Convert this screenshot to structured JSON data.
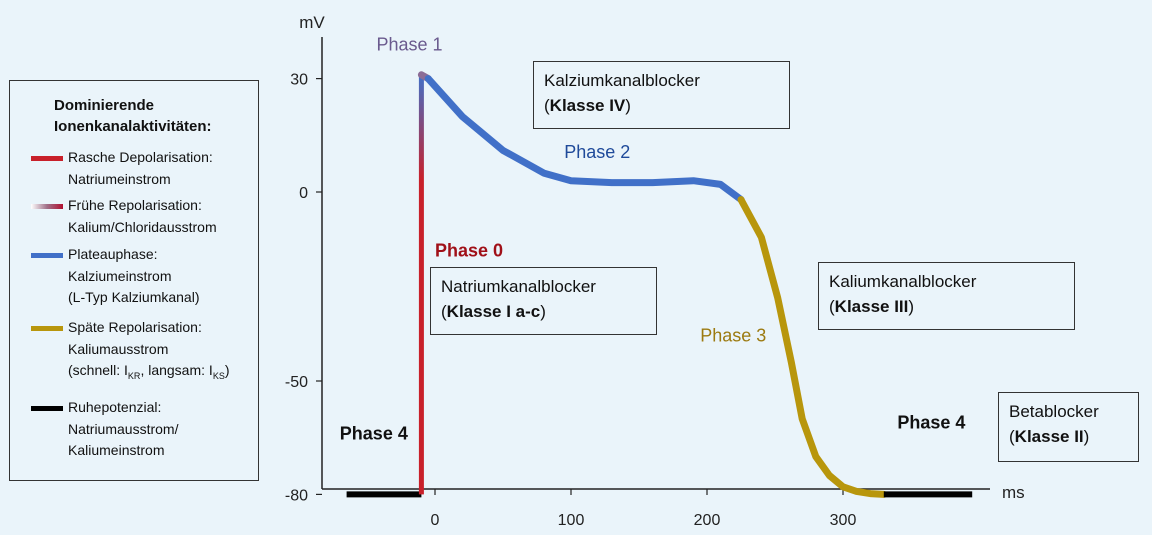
{
  "chart_data": {
    "type": "line",
    "xlabel": "ms",
    "ylabel": "mV",
    "xlim": [
      -70,
      400
    ],
    "ylim": [
      -90,
      38
    ],
    "xticks": [
      0,
      100,
      200,
      300
    ],
    "yticks": [
      30,
      0,
      -50,
      -80
    ],
    "series": [
      {
        "key": "rest_left",
        "color": "#000000",
        "x": [
          -65,
          -10
        ],
        "y": [
          -80,
          -80
        ]
      },
      {
        "key": "depolarization",
        "color": "#c8202a",
        "x": [
          -10,
          -10
        ],
        "y": [
          -80,
          31
        ]
      },
      {
        "key": "early_repolarization",
        "color": "#8c6c96",
        "x": [
          -10,
          -5
        ],
        "y": [
          31,
          30
        ]
      },
      {
        "key": "plateau",
        "color": "#4170c8",
        "x": [
          -5,
          20,
          50,
          80,
          100,
          130,
          160,
          190,
          210,
          225
        ],
        "y": [
          30,
          20,
          11,
          5,
          3,
          2.5,
          2.5,
          3,
          2,
          -2
        ]
      },
      {
        "key": "late_repolarization",
        "color": "#b8960c",
        "x": [
          225,
          240,
          252,
          262,
          270,
          280,
          290,
          300,
          310,
          320,
          330
        ],
        "y": [
          -2,
          -12,
          -28,
          -45,
          -60,
          -70,
          -75,
          -78,
          -79.2,
          -79.8,
          -80
        ]
      },
      {
        "key": "rest_right",
        "color": "#000000",
        "x": [
          330,
          395
        ],
        "y": [
          -80,
          -80
        ]
      }
    ],
    "annotations": [
      {
        "label": "Phase 0",
        "x": 0,
        "y": -17,
        "color": "#a01018"
      },
      {
        "label": "Phase 1",
        "x": -43,
        "y": 37.5,
        "color": "#6a5a8e"
      },
      {
        "label": "Phase 2",
        "x": 95,
        "y": 9,
        "color": "#1f4a9a"
      },
      {
        "label": "Phase 3",
        "x": 195,
        "y": -39.5,
        "color": "#9c7a10"
      },
      {
        "label": "Phase 4",
        "x": -70,
        "y": -65.5,
        "color": "#111111"
      },
      {
        "label": "Phase 4",
        "x": 340,
        "y": -62.5,
        "color": "#111111"
      }
    ]
  },
  "legend": {
    "title_line1": "Dominierende",
    "title_line2": "Ionenkanalaktivitäten:",
    "items": [
      {
        "line1": "Rasche Depolarisation:",
        "line2": "Natriumeinstrom"
      },
      {
        "line1": "Frühe Repolarisation:",
        "line2": "Kalium/Chloridausstrom"
      },
      {
        "line1": "Plateauphase:",
        "line2": "Kalziumeinstrom",
        "line3": "(L-Typ Kalziumkanal)"
      },
      {
        "line1": "Späte Repolarisation:",
        "line2": "Kaliumausstrom",
        "line3_a": "(schnell: I",
        "line3_sub1": "KR",
        "line3_b": ", langsam: I",
        "line3_sub2": "KS",
        "line3_c": ")"
      },
      {
        "line1": "Ruhepotenzial:",
        "line2": "Natriumausstrom/",
        "line3": "Kaliumeinstrom"
      }
    ]
  },
  "boxes": {
    "calcium": {
      "line1": "Kalziumkanalblocker",
      "open": "(",
      "bold": "Klasse IV",
      "close": ")"
    },
    "sodium": {
      "line1": "Natriumkanalblocker",
      "open": "(",
      "bold": "Klasse I a-c",
      "close": ")"
    },
    "potassium": {
      "line1": "Kaliumkanalblocker",
      "open": "(",
      "bold": "Klasse III",
      "close": ")"
    },
    "beta": {
      "line1": "Betablocker",
      "open": "(",
      "bold": "Klasse II",
      "close": ")"
    }
  }
}
